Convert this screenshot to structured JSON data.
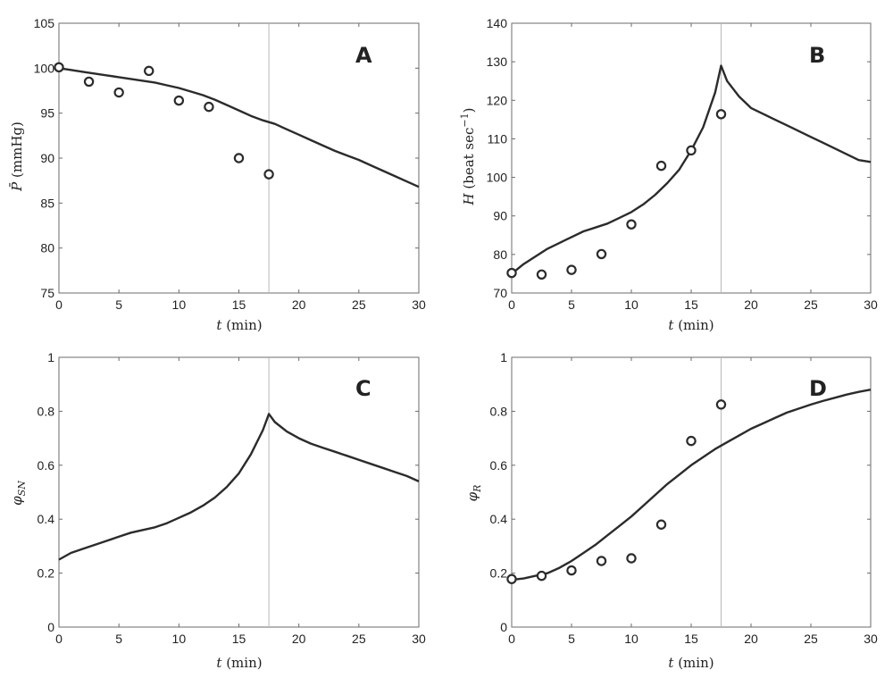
{
  "chart_data": [
    {
      "type": "line",
      "panel": "A",
      "xlabel": "t (min)",
      "ylabel": "P̄ (mmHg)",
      "xlim": [
        0,
        30
      ],
      "ylim": [
        75,
        105
      ],
      "xticks": [
        0,
        5,
        10,
        15,
        20,
        25,
        30
      ],
      "yticks": [
        75,
        80,
        85,
        90,
        95,
        100,
        105
      ],
      "vline_x": 17.5,
      "series": [
        {
          "kind": "line",
          "x": [
            0,
            1,
            2,
            3,
            4,
            5,
            6,
            7,
            8,
            9,
            10,
            11,
            12,
            13,
            14,
            15,
            16,
            17,
            18,
            19,
            20,
            21,
            22,
            23,
            24,
            25,
            26,
            27,
            28,
            29,
            30
          ],
          "values": [
            100.0,
            99.8,
            99.6,
            99.4,
            99.2,
            99.0,
            98.8,
            98.6,
            98.4,
            98.1,
            97.8,
            97.4,
            97.0,
            96.5,
            95.9,
            95.3,
            94.7,
            94.2,
            93.8,
            93.2,
            92.6,
            92.0,
            91.4,
            90.8,
            90.3,
            89.8,
            89.2,
            88.6,
            88.0,
            87.4,
            86.8
          ]
        },
        {
          "kind": "scatter",
          "x": [
            0,
            2.5,
            5,
            7.5,
            10,
            12.5,
            15,
            17.5
          ],
          "values": [
            100.1,
            98.5,
            97.3,
            99.7,
            96.4,
            95.7,
            90.0,
            88.2
          ]
        }
      ]
    },
    {
      "type": "line",
      "panel": "B",
      "xlabel": "t (min)",
      "ylabel": "H (beat sec⁻¹)",
      "xlim": [
        0,
        30
      ],
      "ylim": [
        70,
        140
      ],
      "xticks": [
        0,
        5,
        10,
        15,
        20,
        25,
        30
      ],
      "yticks": [
        70,
        80,
        90,
        100,
        110,
        120,
        130,
        140
      ],
      "vline_x": 17.5,
      "series": [
        {
          "kind": "line",
          "x": [
            0,
            1,
            2,
            3,
            4,
            5,
            6,
            7,
            8,
            9,
            10,
            11,
            12,
            13,
            14,
            15,
            16,
            17,
            17.5,
            18,
            19,
            20,
            21,
            22,
            23,
            24,
            25,
            26,
            27,
            28,
            29,
            30
          ],
          "values": [
            75,
            77.5,
            79.5,
            81.5,
            83,
            84.5,
            86,
            87,
            88,
            89.5,
            91,
            93,
            95.5,
            98.5,
            102,
            107,
            113,
            122,
            129,
            125,
            121,
            118,
            116.5,
            115,
            113.5,
            112,
            110.5,
            109,
            107.5,
            106,
            104.5,
            104
          ]
        },
        {
          "kind": "scatter",
          "x": [
            0,
            2.5,
            5,
            7.5,
            10,
            12.5,
            15,
            17.5
          ],
          "values": [
            75.2,
            74.8,
            76.0,
            80.1,
            87.8,
            103.0,
            107.0,
            116.4
          ]
        }
      ]
    },
    {
      "type": "line",
      "panel": "C",
      "xlabel": "t (min)",
      "ylabel": "φSN",
      "xlim": [
        0,
        30
      ],
      "ylim": [
        0,
        1
      ],
      "xticks": [
        0,
        5,
        10,
        15,
        20,
        25,
        30
      ],
      "yticks": [
        0,
        0.2,
        0.4,
        0.6,
        0.8,
        1
      ],
      "vline_x": 17.5,
      "series": [
        {
          "kind": "line",
          "x": [
            0,
            1,
            2,
            3,
            4,
            5,
            6,
            7,
            8,
            9,
            10,
            11,
            12,
            13,
            14,
            15,
            16,
            17,
            17.5,
            18,
            19,
            20,
            21,
            22,
            23,
            24,
            25,
            26,
            27,
            28,
            29,
            30
          ],
          "values": [
            0.25,
            0.275,
            0.29,
            0.305,
            0.32,
            0.335,
            0.35,
            0.36,
            0.37,
            0.385,
            0.405,
            0.425,
            0.45,
            0.48,
            0.52,
            0.57,
            0.64,
            0.73,
            0.79,
            0.76,
            0.725,
            0.7,
            0.68,
            0.665,
            0.65,
            0.635,
            0.62,
            0.605,
            0.59,
            0.575,
            0.56,
            0.54
          ]
        }
      ]
    },
    {
      "type": "line",
      "panel": "D",
      "xlabel": "t (min)",
      "ylabel": "φR",
      "xlim": [
        0,
        30
      ],
      "ylim": [
        0,
        1
      ],
      "xticks": [
        0,
        5,
        10,
        15,
        20,
        25,
        30
      ],
      "yticks": [
        0,
        0.2,
        0.4,
        0.6,
        0.8,
        1
      ],
      "vline_x": 17.5,
      "series": [
        {
          "kind": "line",
          "x": [
            0,
            1,
            2,
            3,
            4,
            5,
            6,
            7,
            8,
            9,
            10,
            11,
            12,
            13,
            14,
            15,
            16,
            17,
            18,
            19,
            20,
            21,
            22,
            23,
            24,
            25,
            26,
            27,
            28,
            29,
            30
          ],
          "values": [
            0.175,
            0.18,
            0.19,
            0.2,
            0.22,
            0.245,
            0.275,
            0.305,
            0.34,
            0.375,
            0.41,
            0.45,
            0.49,
            0.53,
            0.565,
            0.6,
            0.63,
            0.66,
            0.685,
            0.71,
            0.735,
            0.755,
            0.775,
            0.795,
            0.81,
            0.825,
            0.838,
            0.85,
            0.862,
            0.872,
            0.88
          ]
        },
        {
          "kind": "scatter",
          "x": [
            0,
            2.5,
            5,
            7.5,
            10,
            12.5,
            15,
            17.5
          ],
          "values": [
            0.178,
            0.19,
            0.21,
            0.245,
            0.255,
            0.38,
            0.69,
            0.825
          ]
        }
      ]
    }
  ]
}
